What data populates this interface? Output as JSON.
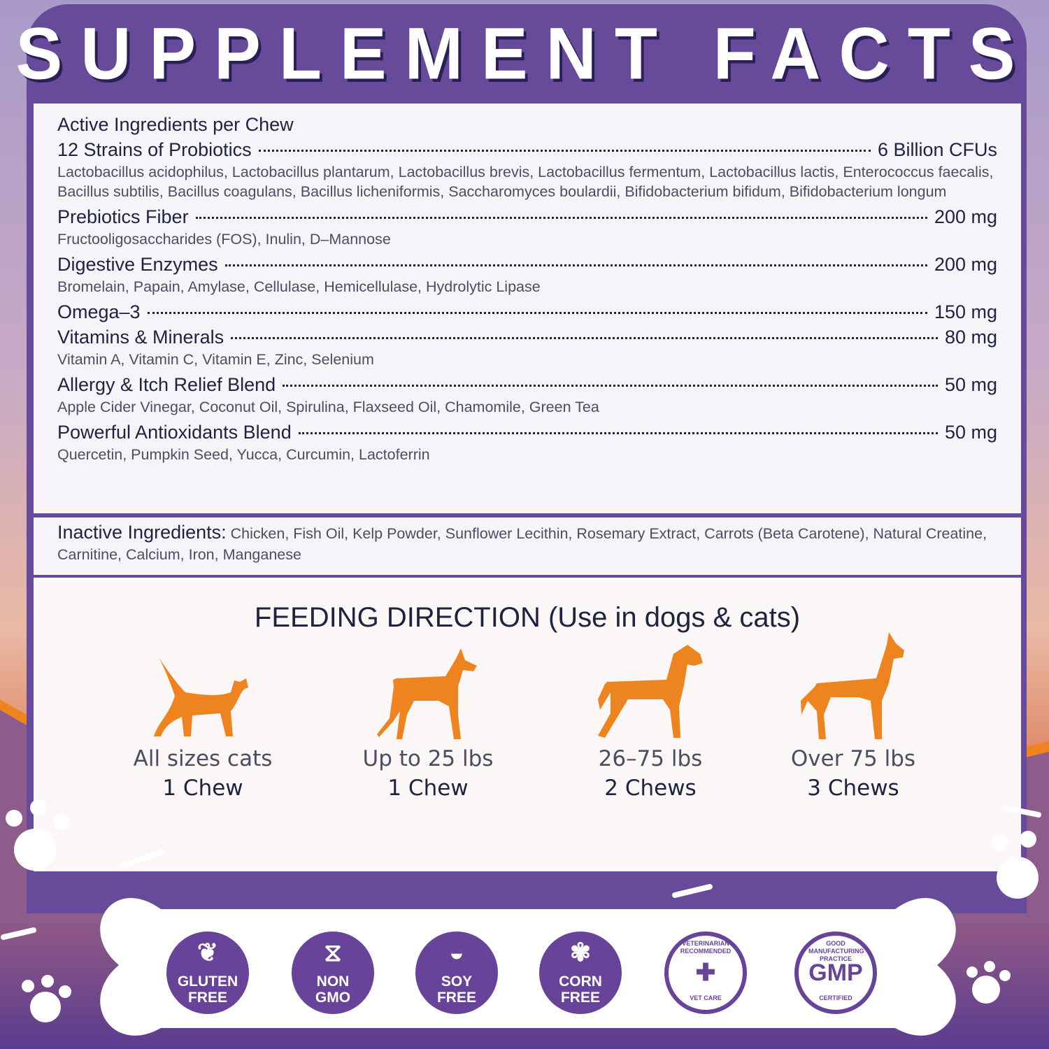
{
  "title": "SUPPLEMENT FACTS",
  "active": {
    "heading": "Active Ingredients per Chew",
    "items": [
      {
        "name": "12 Strains of Probiotics",
        "amount": "6 Billion CFUs",
        "detail": "Lactobacillus acidophilus, Lactobacillus plantarum, Lactobacillus brevis, Lactobacillus fermentum, Lactobacillus lactis, Enterococcus faecalis, Bacillus subtilis, Bacillus coagulans, Bacillus licheniformis, Saccharomyces boulardii, Bifidobacterium bifidum, Bifidobacterium longum"
      },
      {
        "name": "Prebiotics Fiber",
        "amount": "200 mg",
        "detail": "Fructooligosaccharides (FOS), Inulin, D–Mannose"
      },
      {
        "name": "Digestive Enzymes",
        "amount": "200 mg",
        "detail": "Bromelain, Papain, Amylase, Cellulase, Hemicellulase, Hydrolytic Lipase"
      },
      {
        "name": "Omega–3",
        "amount": "150 mg",
        "detail": ""
      },
      {
        "name": "Vitamins & Minerals",
        "amount": "80 mg",
        "detail": "Vitamin A, Vitamin C, Vitamin E, Zinc, Selenium"
      },
      {
        "name": "Allergy & Itch Relief Blend",
        "amount": "50 mg",
        "detail": "Apple Cider Vinegar, Coconut Oil, Spirulina, Flaxseed Oil, Chamomile, Green Tea"
      },
      {
        "name": "Powerful Antioxidants Blend",
        "amount": "50 mg",
        "detail": "Quercetin, Pumpkin Seed, Yucca, Curcumin, Lactoferrin"
      }
    ]
  },
  "inactive": {
    "label": "Inactive Ingredients:",
    "text": "Chicken, Fish Oil, Kelp Powder, Sunflower Lecithin, Rosemary Extract, Carrots (Beta Carotene), Natural Creatine, Carnitine, Calcium, Iron, Manganese"
  },
  "feeding": {
    "title": "FEEDING DIRECTION (Use in dogs & cats)",
    "items": [
      {
        "icon": "cat-icon",
        "size": "All sizes cats",
        "dose": "1 Chew"
      },
      {
        "icon": "small-dog-icon",
        "size": "Up to 25 lbs",
        "dose": "1 Chew"
      },
      {
        "icon": "medium-dog-icon",
        "size": "26–75 lbs",
        "dose": "2 Chews"
      },
      {
        "icon": "large-dog-icon",
        "size": "Over 75 lbs",
        "dose": "3 Chews"
      }
    ]
  },
  "badges": [
    {
      "icon": "wheat-icon",
      "line1": "GLUTEN",
      "line2": "FREE"
    },
    {
      "icon": "dna-icon",
      "line1": "NON",
      "line2": "GMO"
    },
    {
      "icon": "soybean-icon",
      "line1": "SOY",
      "line2": "FREE"
    },
    {
      "icon": "corn-icon",
      "line1": "CORN",
      "line2": "FREE"
    },
    {
      "icon": "vet-care-seal",
      "top": "VETERINARIAN RECOMMENDED",
      "bottom": "VET CARE"
    },
    {
      "icon": "gmp-seal",
      "top": "GOOD MANUFACTURING PRACTICE",
      "main": "GMP",
      "bottom": "CERTIFIED"
    }
  ],
  "colors": {
    "purple": "#684a9b",
    "orange": "#ee8420",
    "text": "#1d2340"
  }
}
